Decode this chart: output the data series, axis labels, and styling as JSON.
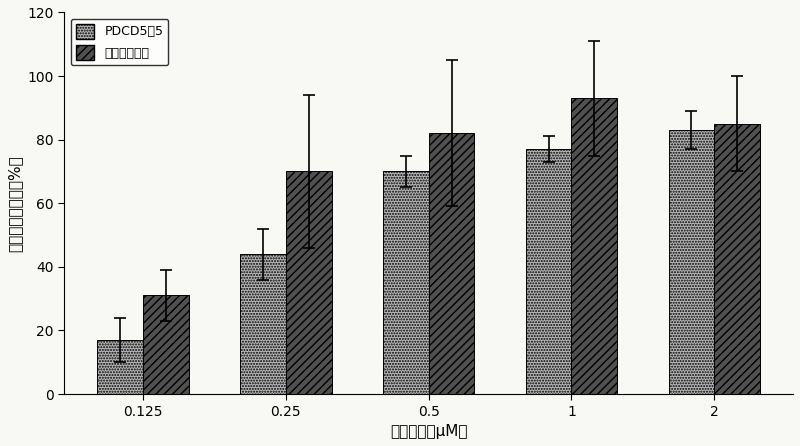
{
  "categories": [
    "0.125",
    "0.25",
    "0.5",
    "1",
    "2"
  ],
  "pdcd5_values": [
    17,
    44,
    70,
    77,
    83
  ],
  "rimantadine_values": [
    31,
    70,
    82,
    93,
    85
  ],
  "pdcd5_errors": [
    7,
    8,
    5,
    4,
    6
  ],
  "rimantadine_errors": [
    8,
    24,
    23,
    18,
    15
  ],
  "ylabel": "细胞病变抑制率（%）",
  "xlabel": "样品浓度（μM）",
  "legend_pdcd5": "PDCD5－5",
  "legend_rimantadine": "盐酸金刚乙胺",
  "ylim": [
    0,
    120
  ],
  "yticks": [
    0,
    20,
    40,
    60,
    80,
    100,
    120
  ],
  "pdcd5_facecolor": "#b8b8b8",
  "rimantadine_facecolor": "#505050",
  "background_color": "#f8f8f4",
  "axis_fontsize": 11,
  "tick_fontsize": 10,
  "legend_fontsize": 9,
  "bar_width": 0.32
}
